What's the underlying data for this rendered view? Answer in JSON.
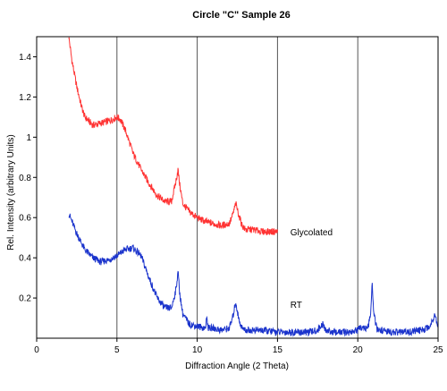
{
  "chart_data": {
    "type": "line",
    "title": "Circle \"C\" Sample 26",
    "xlabel": "Diffraction Angle (2 Theta)",
    "ylabel": "Rel. Intensity (arbitrary Units)",
    "xlim": [
      0,
      25
    ],
    "ylim": [
      0,
      1.5
    ],
    "x_ticks": [
      0,
      5,
      10,
      15,
      20,
      25
    ],
    "y_ticks": [
      0.2,
      0.4,
      0.6,
      0.8,
      1,
      1.2,
      1.4
    ],
    "x_tick_labels": [
      "0",
      "5",
      "10",
      "15",
      "20",
      "25"
    ],
    "y_tick_labels": [
      "0.2",
      "0.4",
      "0.6",
      "0.8",
      "1",
      "1.2",
      "1.4"
    ],
    "grid": "vertical",
    "series": [
      {
        "name": "Glycolated",
        "color": "#ff3333",
        "x": [
          2.0,
          2.2,
          2.5,
          2.8,
          3.0,
          3.5,
          4.0,
          4.5,
          5.0,
          5.2,
          5.5,
          5.8,
          6.0,
          6.5,
          7.0,
          7.5,
          8.0,
          8.4,
          8.7,
          8.8,
          8.9,
          9.1,
          9.5,
          10.0,
          10.5,
          11.0,
          11.5,
          12.0,
          12.2,
          12.4,
          12.6,
          12.8,
          13.0,
          13.5,
          14.0,
          14.5,
          15.0
        ],
        "values": [
          1.5,
          1.38,
          1.25,
          1.15,
          1.1,
          1.06,
          1.07,
          1.08,
          1.1,
          1.09,
          1.04,
          0.97,
          0.92,
          0.84,
          0.77,
          0.71,
          0.68,
          0.68,
          0.79,
          0.84,
          0.77,
          0.67,
          0.63,
          0.6,
          0.58,
          0.57,
          0.56,
          0.57,
          0.61,
          0.67,
          0.61,
          0.56,
          0.54,
          0.54,
          0.53,
          0.53,
          0.53
        ],
        "label": "Glycolated"
      },
      {
        "name": "RT",
        "color": "#1a33cc",
        "x": [
          2.0,
          2.2,
          2.5,
          3.0,
          3.5,
          4.0,
          4.5,
          5.0,
          5.5,
          6.0,
          6.5,
          7.0,
          7.5,
          8.0,
          8.4,
          8.7,
          8.8,
          8.9,
          9.1,
          9.5,
          10.0,
          10.5,
          10.6,
          10.7,
          11.0,
          11.5,
          12.0,
          12.2,
          12.4,
          12.6,
          12.8,
          13.0,
          14.0,
          15.0,
          16.0,
          17.0,
          17.5,
          17.8,
          18.0,
          18.5,
          19.0,
          19.5,
          20.0,
          20.3,
          20.6,
          20.8,
          20.9,
          21.0,
          21.2,
          21.5,
          22.0,
          23.0,
          24.0,
          24.5,
          24.8,
          25.0
        ],
        "values": [
          0.62,
          0.58,
          0.52,
          0.44,
          0.4,
          0.38,
          0.39,
          0.41,
          0.44,
          0.45,
          0.41,
          0.3,
          0.2,
          0.15,
          0.15,
          0.25,
          0.34,
          0.23,
          0.12,
          0.07,
          0.06,
          0.05,
          0.1,
          0.05,
          0.05,
          0.04,
          0.05,
          0.1,
          0.18,
          0.09,
          0.05,
          0.04,
          0.04,
          0.03,
          0.03,
          0.03,
          0.04,
          0.07,
          0.04,
          0.03,
          0.03,
          0.03,
          0.04,
          0.06,
          0.04,
          0.12,
          0.27,
          0.12,
          0.04,
          0.04,
          0.03,
          0.03,
          0.04,
          0.06,
          0.12,
          0.06
        ],
        "label": "RT"
      }
    ]
  }
}
